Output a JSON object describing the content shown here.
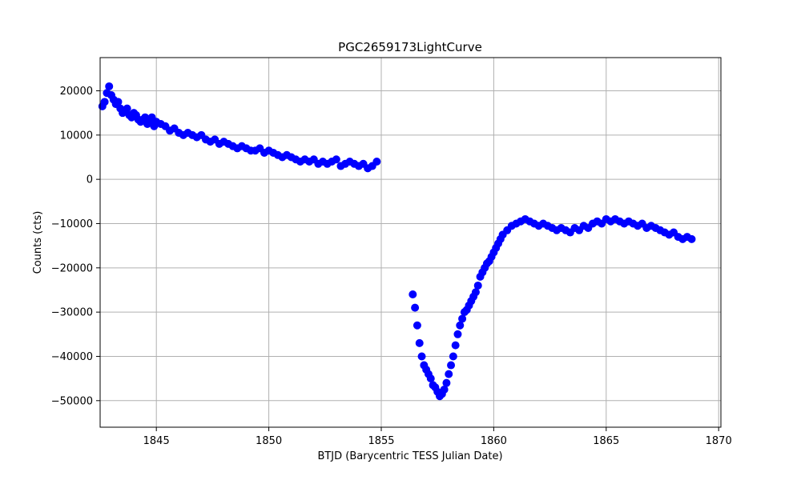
{
  "chart_data": {
    "type": "scatter",
    "title": "PGC2659173LightCurve",
    "xlabel": "BTJD (Barycentric TESS Julian Date)",
    "ylabel": "Counts (cts)",
    "xlim": [
      1842.5,
      1870.1
    ],
    "ylim": [
      -56000,
      27500
    ],
    "x_ticks": [
      1845,
      1850,
      1855,
      1860,
      1865,
      1870
    ],
    "x_tick_labels": [
      "1845",
      "1850",
      "1855",
      "1860",
      "1865",
      "1870"
    ],
    "y_ticks": [
      20000,
      10000,
      0,
      -10000,
      -20000,
      -30000,
      -40000,
      -50000
    ],
    "y_tick_labels": [
      "20000",
      "10000",
      "0",
      "−10000",
      "−20000",
      "−30000",
      "−40000",
      "−50000"
    ],
    "grid": true,
    "marker_color": "#0000ff",
    "series": [
      {
        "x": [
          1842.6,
          1842.7,
          1842.8,
          1842.9,
          1843.0,
          1843.1,
          1843.2,
          1843.3,
          1843.4,
          1843.5,
          1843.6,
          1843.7,
          1843.8,
          1843.9,
          1844.0,
          1844.1,
          1844.2,
          1844.3,
          1844.4,
          1844.5,
          1844.6,
          1844.7,
          1844.8,
          1844.9,
          1845.0,
          1845.2,
          1845.4,
          1845.6,
          1845.8,
          1846.0,
          1846.2,
          1846.4,
          1846.6,
          1846.8,
          1847.0,
          1847.2,
          1847.4,
          1847.6,
          1847.8,
          1848.0,
          1848.2,
          1848.4,
          1848.6,
          1848.8,
          1849.0,
          1849.2,
          1849.4,
          1849.6,
          1849.8,
          1850.0,
          1850.2,
          1850.4,
          1850.6,
          1850.8,
          1851.0,
          1851.2,
          1851.4,
          1851.6,
          1851.8,
          1852.0,
          1852.2,
          1852.4,
          1852.6,
          1852.8,
          1853.0,
          1853.2,
          1853.4,
          1853.6,
          1853.8,
          1854.0,
          1854.2,
          1854.4,
          1854.6,
          1854.8,
          1856.4,
          1856.5,
          1856.6,
          1856.7,
          1856.8,
          1856.9,
          1857.0,
          1857.1,
          1857.2,
          1857.3,
          1857.4,
          1857.5,
          1857.6,
          1857.7,
          1857.8,
          1857.9,
          1858.0,
          1858.1,
          1858.2,
          1858.3,
          1858.4,
          1858.5,
          1858.6,
          1858.7,
          1858.8,
          1858.9,
          1859.0,
          1859.1,
          1859.2,
          1859.3,
          1859.4,
          1859.5,
          1859.6,
          1859.7,
          1859.8,
          1859.9,
          1860.0,
          1860.1,
          1860.2,
          1860.3,
          1860.4,
          1860.6,
          1860.8,
          1861.0,
          1861.2,
          1861.4,
          1861.6,
          1861.8,
          1862.0,
          1862.2,
          1862.4,
          1862.6,
          1862.8,
          1863.0,
          1863.2,
          1863.4,
          1863.6,
          1863.8,
          1864.0,
          1864.2,
          1864.4,
          1864.6,
          1864.8,
          1865.0,
          1865.2,
          1865.4,
          1865.6,
          1865.8,
          1866.0,
          1866.2,
          1866.4,
          1866.6,
          1866.8,
          1867.0,
          1867.2,
          1867.4,
          1867.6,
          1867.8,
          1868.0,
          1868.2,
          1868.4,
          1868.6,
          1868.8
        ],
        "y": [
          16500,
          17500,
          19500,
          21000,
          19000,
          18000,
          17000,
          17500,
          16000,
          15000,
          15500,
          16000,
          14500,
          14000,
          15000,
          14500,
          13500,
          13000,
          13500,
          14000,
          12500,
          13000,
          14000,
          12000,
          13000,
          12500,
          12000,
          11000,
          11500,
          10500,
          10000,
          10500,
          10000,
          9500,
          10000,
          9000,
          8500,
          9000,
          8000,
          8500,
          8000,
          7500,
          7000,
          7500,
          7000,
          6500,
          6500,
          7000,
          6000,
          6500,
          6000,
          5500,
          5000,
          5500,
          5000,
          4500,
          4000,
          4500,
          4000,
          4500,
          3500,
          4000,
          3500,
          4000,
          4500,
          3000,
          3500,
          4000,
          3500,
          3000,
          3500,
          2500,
          3000,
          4000,
          -26000,
          -29000,
          -33000,
          -37000,
          -40000,
          -42000,
          -43000,
          -44000,
          -45000,
          -46500,
          -47000,
          -48000,
          -49000,
          -48500,
          -47500,
          -46000,
          -44000,
          -42000,
          -40000,
          -37500,
          -35000,
          -33000,
          -31500,
          -30000,
          -29500,
          -28500,
          -27500,
          -26500,
          -25500,
          -24000,
          -22000,
          -21000,
          -20000,
          -19000,
          -18500,
          -17500,
          -16500,
          -15500,
          -14500,
          -13500,
          -12500,
          -11500,
          -10500,
          -10000,
          -9500,
          -9000,
          -9500,
          -10000,
          -10500,
          -10000,
          -10500,
          -11000,
          -11500,
          -11000,
          -11500,
          -12000,
          -11000,
          -11500,
          -10500,
          -11000,
          -10000,
          -9500,
          -10000,
          -9000,
          -9500,
          -9000,
          -9500,
          -10000,
          -9500,
          -10000,
          -10500,
          -10000,
          -11000,
          -10500,
          -11000,
          -11500,
          -12000,
          -12500,
          -12000,
          -13000,
          -13500,
          -13000,
          -13500
        ]
      }
    ]
  }
}
